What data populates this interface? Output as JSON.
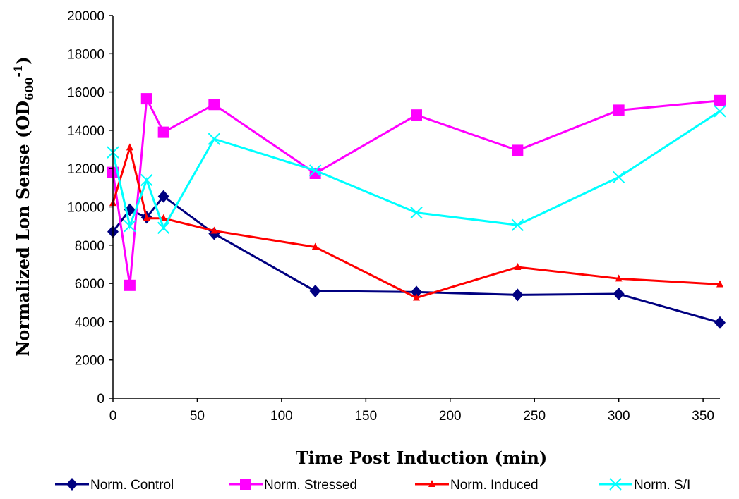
{
  "chart_data": {
    "type": "line",
    "xlabel": "Time Post Induction (min)",
    "ylabel": "Normalized Lon Sense (OD",
    "ylabel_sub": "600",
    "ylabel_sup": "-1",
    "ylabel_close": ")",
    "xlim": [
      0,
      360
    ],
    "ylim": [
      0,
      20000
    ],
    "x_ticks": [
      0,
      50,
      100,
      150,
      200,
      250,
      300,
      350
    ],
    "y_ticks": [
      0,
      2000,
      4000,
      6000,
      8000,
      10000,
      12000,
      14000,
      16000,
      18000,
      20000
    ],
    "grid": false,
    "legend_position": "bottom",
    "series": [
      {
        "name": "Norm. Control",
        "color": "#000080",
        "marker": "diamond",
        "x": [
          0,
          10,
          20,
          30,
          60,
          120,
          180,
          240,
          300,
          360
        ],
        "y": [
          8700,
          9850,
          9450,
          10550,
          8600,
          5600,
          5550,
          5400,
          5450,
          3950
        ]
      },
      {
        "name": "Norm. Stressed",
        "color": "#FF00FF",
        "marker": "square",
        "x": [
          0,
          10,
          20,
          30,
          60,
          120,
          180,
          240,
          300,
          360
        ],
        "y": [
          11800,
          5900,
          15650,
          13900,
          15350,
          11750,
          14800,
          12950,
          15050,
          15550
        ]
      },
      {
        "name": "Norm. Induced",
        "color": "#FF0000",
        "marker": "triangle",
        "x": [
          0,
          10,
          20,
          30,
          60,
          120,
          180,
          240,
          300,
          360
        ],
        "y": [
          10200,
          13100,
          9400,
          9400,
          8750,
          7900,
          5250,
          6850,
          6250,
          5950
        ]
      },
      {
        "name": "Norm. S/I",
        "color": "#00FFFF",
        "marker": "x",
        "x": [
          0,
          10,
          20,
          30,
          60,
          120,
          180,
          240,
          300,
          360
        ],
        "y": [
          12850,
          9000,
          11400,
          8900,
          13550,
          11900,
          9700,
          9050,
          11550,
          15000
        ]
      }
    ]
  }
}
